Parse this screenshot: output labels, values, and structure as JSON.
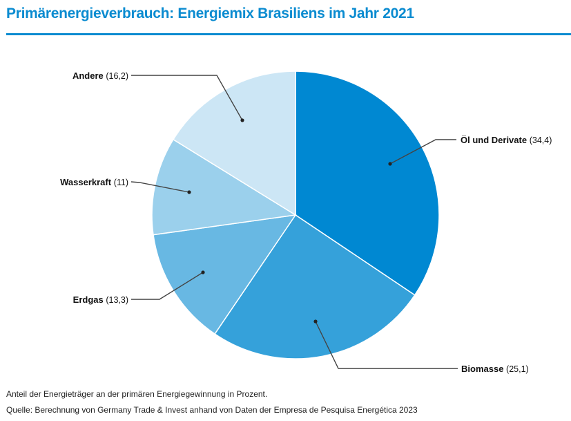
{
  "header": {
    "title": "Primärenergieverbrauch: Energiemix Brasiliens im Jahr 2021"
  },
  "chart_data": {
    "type": "pie",
    "title": "Primärenergieverbrauch: Energiemix Brasiliens im Jahr 2021",
    "unit": "Prozent",
    "start_angle": "12 o'clock",
    "direction": "clockwise",
    "slices": [
      {
        "label": "Öl und Derivate",
        "value": 34.4,
        "value_label": "(34,4)",
        "color": "#0088d2",
        "label_side": "right"
      },
      {
        "label": "Biomasse",
        "value": 25.1,
        "value_label": "(25,1)",
        "color": "#35a1da",
        "label_side": "right"
      },
      {
        "label": "Erdgas",
        "value": 13.3,
        "value_label": "(13,3)",
        "color": "#68b8e3",
        "label_side": "left"
      },
      {
        "label": "Wasserkraft",
        "value": 11,
        "value_label": "(11)",
        "color": "#9bd0ec",
        "label_side": "left"
      },
      {
        "label": "Andere",
        "value": 16.2,
        "value_label": "(16,2)",
        "color": "#cce6f5",
        "label_side": "left"
      }
    ]
  },
  "footer": {
    "note": "Anteil der Energieträger an der primären Energiegewinnung in Prozent.",
    "source": "Quelle: Berechnung von Germany Trade & Invest anhand von Daten der Empresa de Pesquisa Energética 2023"
  }
}
